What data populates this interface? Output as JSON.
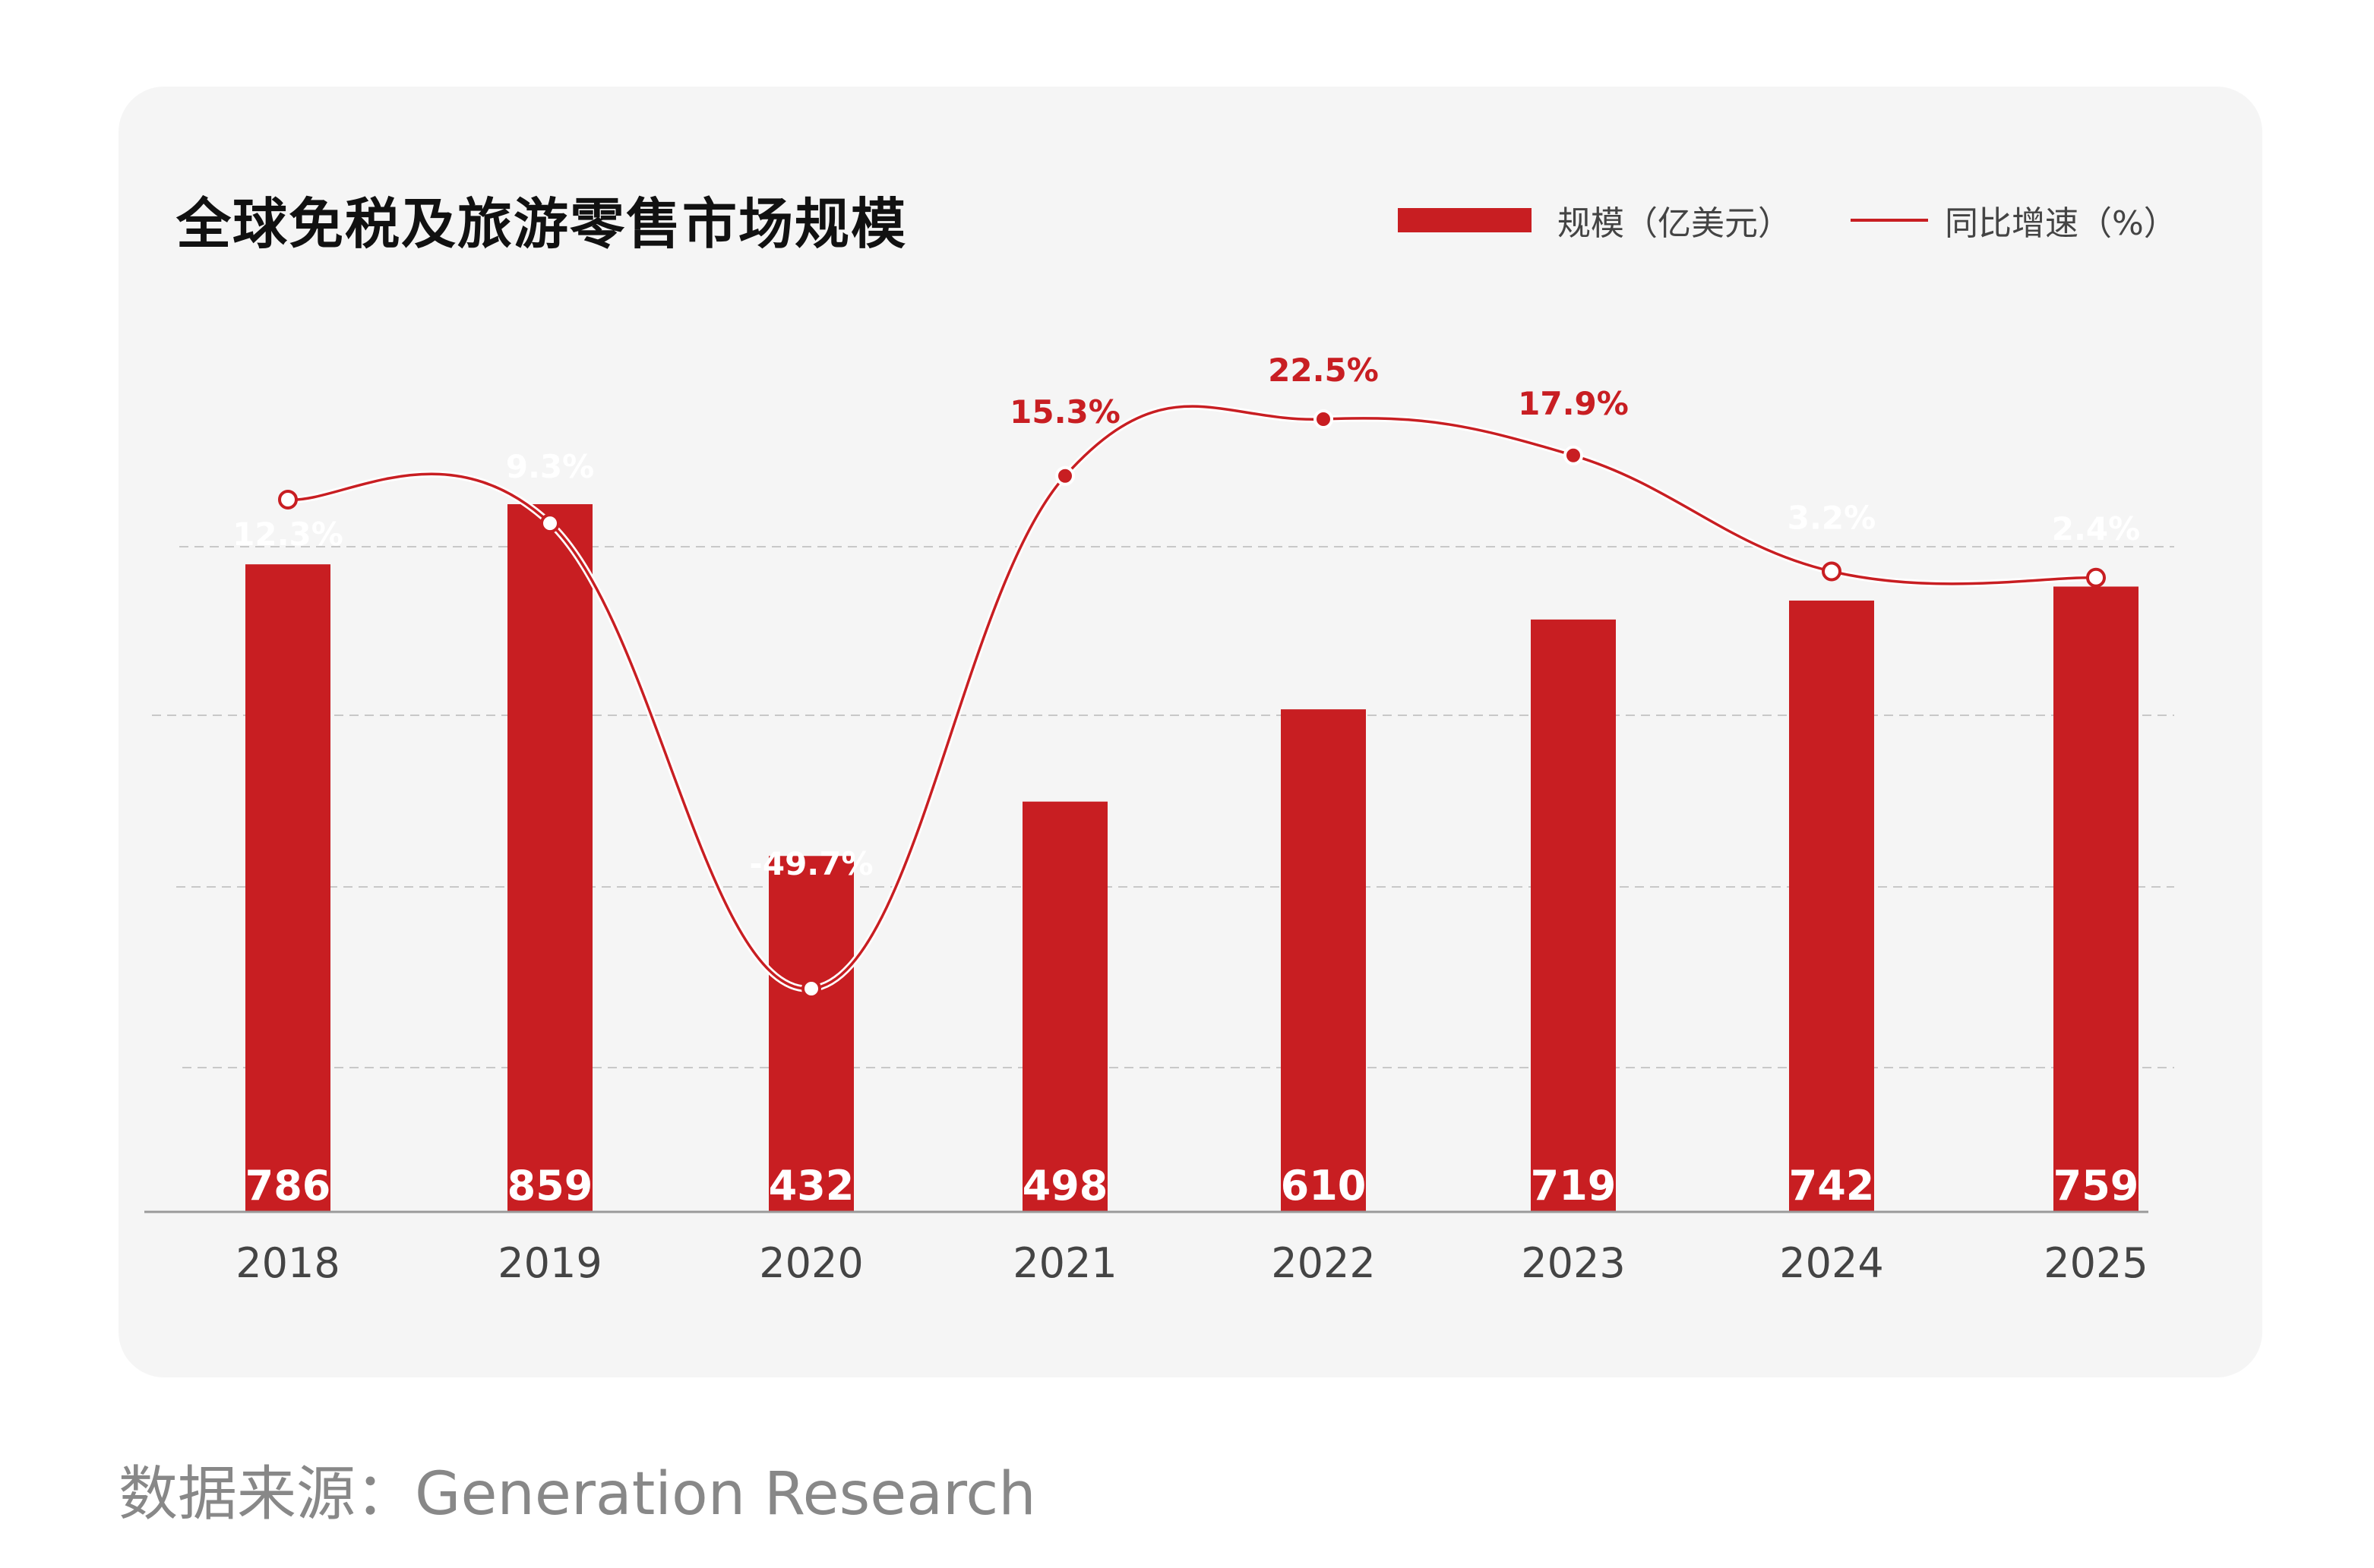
{
  "colors": {
    "bar": "#c81e22",
    "line": "#c81e22",
    "label_on_bar": "#ffffff",
    "label_above": "#c81e22",
    "axis_text": "#444444",
    "grid": "#c8c8c8"
  },
  "chart_data": {
    "type": "bar",
    "title": "全球免税及旅游零售市场规模",
    "categories": [
      "2018",
      "2019",
      "2020",
      "2021",
      "2022",
      "2023",
      "2024",
      "2025"
    ],
    "series": [
      {
        "name": "规模（亿美元）",
        "type": "bar",
        "values": [
          786,
          859,
          432,
          498,
          610,
          719,
          742,
          759
        ]
      },
      {
        "name": "同比增速（%）",
        "type": "line",
        "values": [
          12.3,
          9.3,
          -49.7,
          15.3,
          22.5,
          17.9,
          3.2,
          2.4
        ]
      }
    ],
    "value_labels": [
      "786",
      "859",
      "432",
      "498",
      "610",
      "719",
      "742",
      "759"
    ],
    "growth_labels": [
      "12.3%",
      "9.3%",
      "-49.7%",
      "15.3%",
      "22.5%",
      "17.9%",
      "3.2%",
      "2.4%"
    ],
    "legend_position": "top-right",
    "grid": "horizontal dashed"
  },
  "source": "数据来源：Generation Research"
}
